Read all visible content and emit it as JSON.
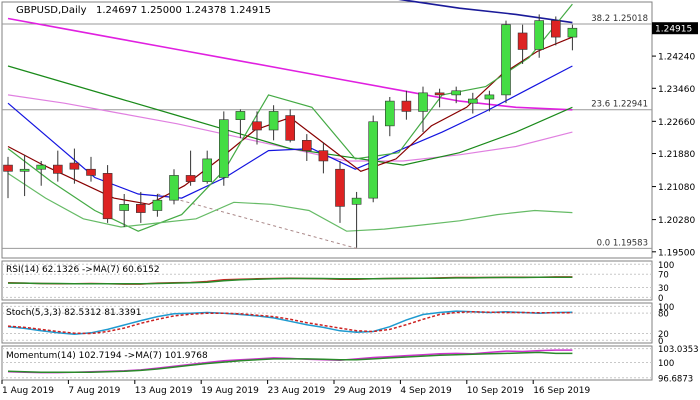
{
  "chart_data": {
    "type": "candlestick",
    "symbol_label": "GBPUSD,Daily",
    "ohlc_readout": "1.24697 1.25000 1.24378 1.24915",
    "price_axis": {
      "ylim": [
        1.1935,
        1.2555
      ],
      "ticks": [
        "1.24240",
        "1.23460",
        "1.22660",
        "1.21880",
        "1.21080",
        "1.20280",
        "1.19500"
      ],
      "tick_values": [
        1.2424,
        1.2346,
        1.2266,
        1.2188,
        1.2108,
        1.2028,
        1.195
      ],
      "current_price": "1.24915",
      "current_value": 1.24915
    },
    "x_labels": [
      "1 Aug 2019",
      "7 Aug 2019",
      "13 Aug 2019",
      "19 Aug 2019",
      "23 Aug 2019",
      "29 Aug 2019",
      "4 Sep 2019",
      "10 Sep 2019",
      "16 Sep 2019"
    ],
    "x_label_index": [
      0,
      4,
      8,
      12,
      16,
      20,
      24,
      28,
      32
    ],
    "candles": [
      [
        1.216,
        1.218,
        1.208,
        1.2145
      ],
      [
        1.2145,
        1.2185,
        1.2085,
        1.215
      ],
      [
        1.215,
        1.217,
        1.211,
        1.216
      ],
      [
        1.216,
        1.2195,
        1.212,
        1.214
      ],
      [
        1.2165,
        1.22,
        1.2115,
        1.215
      ],
      [
        1.215,
        1.218,
        1.212,
        1.2135
      ],
      [
        1.214,
        1.216,
        1.202,
        1.203
      ],
      [
        1.205,
        1.209,
        1.201,
        1.2065
      ],
      [
        1.2065,
        1.2095,
        1.202,
        1.2045
      ],
      [
        1.205,
        1.209,
        1.2035,
        1.2075
      ],
      [
        1.2075,
        1.215,
        1.2065,
        1.2135
      ],
      [
        1.2135,
        1.2195,
        1.211,
        1.212
      ],
      [
        1.212,
        1.2195,
        1.2115,
        1.2175
      ],
      [
        1.213,
        1.229,
        1.211,
        1.227
      ],
      [
        1.227,
        1.2295,
        1.2225,
        1.229
      ],
      [
        1.2265,
        1.229,
        1.221,
        1.2245
      ],
      [
        1.2245,
        1.2305,
        1.222,
        1.229
      ],
      [
        1.228,
        1.2295,
        1.2215,
        1.222
      ],
      [
        1.222,
        1.2235,
        1.217,
        1.2195
      ],
      [
        1.2195,
        1.2215,
        1.214,
        1.217
      ],
      [
        1.215,
        1.217,
        1.202,
        1.206
      ],
      [
        1.2065,
        1.2095,
        1.196,
        1.208
      ],
      [
        1.208,
        1.228,
        1.207,
        1.2265
      ],
      [
        1.2255,
        1.2325,
        1.223,
        1.2315
      ],
      [
        1.2315,
        1.234,
        1.227,
        1.229
      ],
      [
        1.229,
        1.235,
        1.224,
        1.2335
      ],
      [
        1.2335,
        1.2345,
        1.23,
        1.233
      ],
      [
        1.233,
        1.235,
        1.231,
        1.234
      ],
      [
        1.231,
        1.2335,
        1.2285,
        1.232
      ],
      [
        1.232,
        1.234,
        1.229,
        1.233
      ],
      [
        1.233,
        1.251,
        1.231,
        1.25
      ],
      [
        1.248,
        1.25,
        1.2405,
        1.244
      ],
      [
        1.244,
        1.2525,
        1.242,
        1.251
      ],
      [
        1.251,
        1.252,
        1.245,
        1.247
      ],
      [
        1.247,
        1.25,
        1.2438,
        1.24915
      ]
    ],
    "fibonacci_levels": [
      {
        "label": "38.2 1.25018",
        "value": 1.25018
      },
      {
        "label": "23.6 1.22941",
        "value": 1.22941
      },
      {
        "label": "0.0 1.19583",
        "value": 1.19583
      }
    ],
    "overlays": [
      {
        "color": "#1a1a99",
        "values": [
          1.271,
          1.269,
          1.266,
          1.264,
          1.262,
          1.26,
          1.258,
          1.256,
          1.254,
          1.2525,
          1.2505
        ]
      },
      {
        "color": "#e020e0",
        "values": [
          1.2515,
          1.249,
          1.2465,
          1.244,
          1.2415,
          1.239,
          1.2365,
          1.234,
          1.2315,
          1.23,
          1.2294
        ]
      },
      {
        "color": "#e080e0",
        "values": [
          1.233,
          1.231,
          1.2285,
          1.226,
          1.223,
          1.22,
          1.217,
          1.217,
          1.2185,
          1.2205,
          1.224
        ]
      },
      {
        "color": "#1a8a1a",
        "values": [
          1.24,
          1.236,
          1.232,
          1.228,
          1.224,
          1.22,
          1.218,
          1.216,
          1.219,
          1.224,
          1.23
        ]
      },
      {
        "color": "#1414e0",
        "values": [
          1.231,
          1.222,
          1.213,
          1.209,
          1.208,
          1.213,
          1.2195,
          1.22,
          1.215,
          1.2195,
          1.224,
          1.229,
          1.2345,
          1.24
        ]
      },
      {
        "color": "#880000",
        "values": [
          1.2205,
          1.216,
          1.212,
          1.208,
          1.2065,
          1.211,
          1.2175,
          1.2245,
          1.2275,
          1.221,
          1.2145,
          1.2175,
          1.2255,
          1.23,
          1.238,
          1.2435,
          1.247
        ]
      },
      {
        "color": "#44aa44",
        "values": [
          1.22,
          1.212,
          1.205,
          1.2,
          1.204,
          1.215,
          1.233,
          1.23,
          1.2175,
          1.219,
          1.233,
          1.235,
          1.242,
          1.255
        ]
      },
      {
        "color": "#66bb66",
        "values": [
          1.214,
          1.208,
          1.203,
          1.201,
          1.202,
          1.203,
          1.207,
          1.2065,
          1.205,
          1.2,
          1.2005,
          1.2015,
          1.2025,
          1.204,
          1.205,
          1.2045
        ]
      }
    ],
    "rsi": {
      "label": "RSI(14) 62.1326  ->MA(7) 60.6152",
      "ticks": [
        "100",
        "70",
        "30",
        "0"
      ],
      "tick_values": [
        100,
        70,
        30,
        0
      ],
      "series": [
        {
          "color": "#cc2222",
          "values": [
            44,
            43,
            42,
            41,
            41,
            42,
            41,
            40,
            40,
            43,
            44,
            45,
            48,
            53,
            55,
            56,
            57,
            58,
            57,
            56,
            55,
            55,
            56,
            57,
            58,
            58,
            59,
            60,
            60,
            60,
            61,
            61,
            61,
            62,
            62
          ]
        }
      ],
      "ma": {
        "color": "#2a8a2a",
        "values": [
          43,
          43,
          42,
          42,
          41,
          41,
          41,
          41,
          41,
          42,
          43,
          44,
          46,
          50,
          53,
          55,
          56,
          57,
          57,
          57,
          56,
          56,
          56,
          57,
          57,
          58,
          58,
          59,
          59,
          60,
          60,
          60,
          61,
          61,
          61
        ]
      }
    },
    "stoch": {
      "label": "Stoch(5,3,3) 82.5312 81.3391",
      "ticks": [
        "100",
        "80",
        "20",
        "0"
      ],
      "tick_values": [
        100,
        80,
        20,
        0
      ],
      "main": {
        "color": "#1e9ad0",
        "values": [
          40,
          35,
          28,
          22,
          18,
          22,
          32,
          45,
          58,
          70,
          78,
          80,
          82,
          80,
          76,
          72,
          66,
          56,
          46,
          38,
          28,
          24,
          26,
          40,
          60,
          76,
          82,
          86,
          84,
          82,
          84,
          82,
          80,
          82,
          83
        ]
      },
      "signal": {
        "color": "#cc2222",
        "values": [
          42,
          38,
          32,
          26,
          21,
          20,
          26,
          36,
          50,
          62,
          72,
          77,
          80,
          80,
          78,
          74,
          70,
          62,
          52,
          44,
          36,
          28,
          26,
          32,
          46,
          62,
          76,
          82,
          84,
          83,
          82,
          82,
          81,
          81,
          81
        ]
      }
    },
    "momentum": {
      "label": "Momentum(14) 102.7194  ->MA(7) 101.9768",
      "ticks": [
        "103.0353",
        "100",
        "96.6873"
      ],
      "tick_values": [
        103.0353,
        100,
        96.6873
      ],
      "main": {
        "color": "#cc33cc",
        "values": [
          98.0,
          97.9,
          97.8,
          97.8,
          97.9,
          98.0,
          98.1,
          98.2,
          98.4,
          98.8,
          99.2,
          99.6,
          100.0,
          100.4,
          100.6,
          100.8,
          101.0,
          100.9,
          100.7,
          100.6,
          100.5,
          100.8,
          101.1,
          101.3,
          101.5,
          101.7,
          101.9,
          102.0,
          101.9,
          102.2,
          102.5,
          102.4,
          102.6,
          102.7,
          102.7
        ]
      },
      "signal": {
        "color": "#2a8a2a",
        "values": [
          98.1,
          98.0,
          97.9,
          97.9,
          97.9,
          97.9,
          98.0,
          98.1,
          98.3,
          98.6,
          99.0,
          99.4,
          99.8,
          100.1,
          100.4,
          100.6,
          100.8,
          100.8,
          100.8,
          100.7,
          100.6,
          100.6,
          100.8,
          101.0,
          101.2,
          101.4,
          101.6,
          101.7,
          101.8,
          101.9,
          102.0,
          102.1,
          102.2,
          102.0,
          102.0
        ]
      }
    },
    "colors": {
      "bull": "#44dd44",
      "bear": "#dd2222",
      "grid": "#c8c8c8",
      "frame": "#808080"
    }
  }
}
